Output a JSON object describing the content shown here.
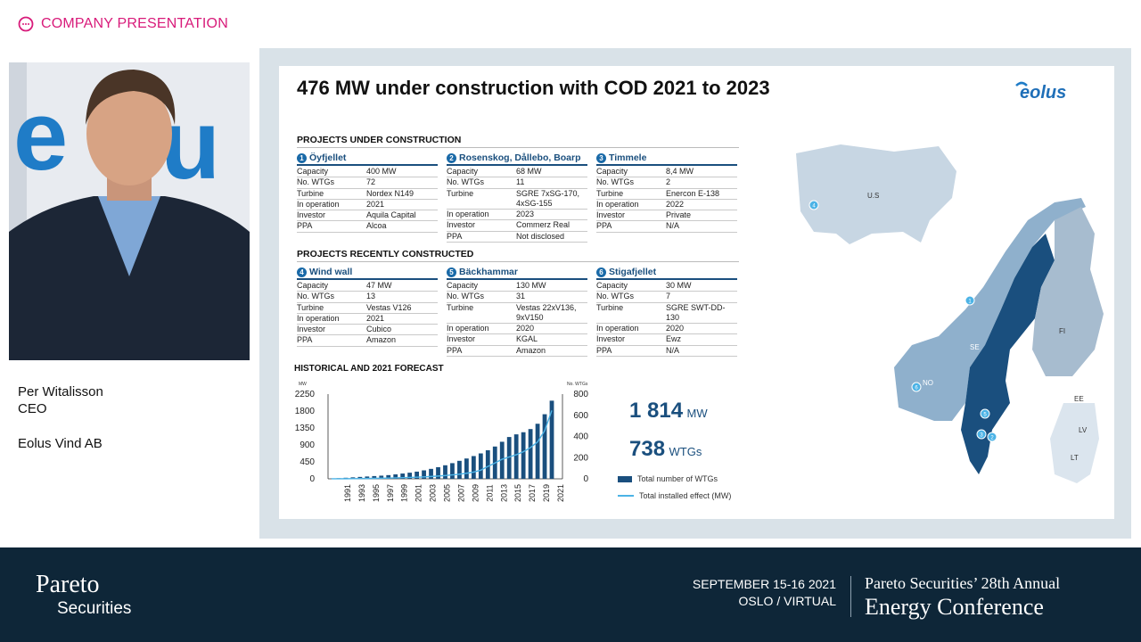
{
  "header": {
    "label": "COMPANY PRESENTATION"
  },
  "presenter": {
    "name": "Per Witalisson",
    "role": "CEO",
    "company": "Eolus Vind AB"
  },
  "slide": {
    "title": "476 MW under construction with COD 2021 to 2023",
    "logo": "eolus",
    "sections": {
      "under": "PROJECTS UNDER CONSTRUCTION",
      "recent": "PROJECTS RECENTLY CONSTRUCTED",
      "forecast": "HISTORICAL AND 2021 FORECAST"
    },
    "projects": [
      {
        "num": "1",
        "name": "Öyfjellet",
        "rows": [
          [
            "Capacity",
            "400 MW"
          ],
          [
            "No. WTGs",
            "72"
          ],
          [
            "Turbine",
            "Nordex N149"
          ],
          [
            "In operation",
            "2021"
          ],
          [
            "Investor",
            "Aquila Capital"
          ],
          [
            "PPA",
            "Alcoa"
          ]
        ]
      },
      {
        "num": "2",
        "name": "Rosenskog, Dållebo, Boarp",
        "rows": [
          [
            "Capacity",
            "68 MW"
          ],
          [
            "No. WTGs",
            "11"
          ],
          [
            "Turbine",
            "SGRE 7xSG-170, 4xSG-155"
          ],
          [
            "In operation",
            "2023"
          ],
          [
            "Investor",
            "Commerz Real"
          ],
          [
            "PPA",
            "Not disclosed"
          ]
        ]
      },
      {
        "num": "3",
        "name": "Timmele",
        "rows": [
          [
            "Capacity",
            "8,4 MW"
          ],
          [
            "No. WTGs",
            "2"
          ],
          [
            "Turbine",
            "Enercon E-138"
          ],
          [
            "In operation",
            "2022"
          ],
          [
            "Investor",
            "Private"
          ],
          [
            "PPA",
            "N/A"
          ]
        ]
      },
      {
        "num": "4",
        "name": "Wind wall",
        "rows": [
          [
            "Capacity",
            "47 MW"
          ],
          [
            "No. WTGs",
            "13"
          ],
          [
            "Turbine",
            "Vestas V126"
          ],
          [
            "In operation",
            "2021"
          ],
          [
            "Investor",
            "Cubico"
          ],
          [
            "PPA",
            "Amazon"
          ]
        ]
      },
      {
        "num": "5",
        "name": "Bäckhammar",
        "rows": [
          [
            "Capacity",
            "130 MW"
          ],
          [
            "No. WTGs",
            "31"
          ],
          [
            "Turbine",
            "Vestas 22xV136, 9xV150"
          ],
          [
            "In operation",
            "2020"
          ],
          [
            "Investor",
            "KGAL"
          ],
          [
            "PPA",
            "Amazon"
          ]
        ]
      },
      {
        "num": "6",
        "name": "Stigafjellet",
        "rows": [
          [
            "Capacity",
            "30 MW"
          ],
          [
            "No. WTGs",
            "7"
          ],
          [
            "Turbine",
            "SGRE SWT-DD-130"
          ],
          [
            "In operation",
            "2020"
          ],
          [
            "Investor",
            "Ewz"
          ],
          [
            "PPA",
            "N/A"
          ]
        ]
      }
    ],
    "totals": {
      "mw": "1 814",
      "mw_unit": "MW",
      "wtgs": "738",
      "wtgs_unit": "WTGs"
    },
    "legend": {
      "bars": "Total number of WTGs",
      "line": "Total installed effect (MW)"
    },
    "map": {
      "labels": [
        "U.S",
        "NO",
        "SE",
        "FI",
        "EE",
        "LV",
        "LT"
      ]
    }
  },
  "chart_data": {
    "type": "bar",
    "title": "HISTORICAL AND 2021 FORECAST",
    "categories": [
      "1990",
      "1991",
      "1992",
      "1993",
      "1994",
      "1995",
      "1996",
      "1997",
      "1998",
      "1999",
      "2000",
      "2001",
      "2002",
      "2003",
      "2004",
      "2005",
      "2006",
      "2007",
      "2008",
      "2009",
      "2010",
      "2011",
      "2012",
      "2013",
      "2014",
      "2015",
      "2016",
      "2017",
      "2018",
      "2019",
      "2020",
      "2021"
    ],
    "tick_labels": [
      "1991",
      "1993",
      "1995",
      "1997",
      "1999",
      "2001",
      "2003",
      "2005",
      "2007",
      "2009",
      "2011",
      "2013",
      "2015",
      "2017",
      "2019",
      "2021"
    ],
    "left_axis": {
      "label": "MW",
      "ticks": [
        "2250",
        "1800",
        "1350",
        "900",
        "450",
        "0"
      ],
      "ylim": [
        0,
        2250
      ]
    },
    "right_axis": {
      "label": "No. WTGs",
      "ticks": [
        "800",
        "600",
        "400",
        "200",
        "0"
      ],
      "ylim": [
        0,
        800
      ]
    },
    "series": [
      {
        "name": "Total number of WTGs",
        "axis": "right",
        "type": "bar",
        "values": [
          2,
          6,
          10,
          14,
          18,
          22,
          26,
          30,
          35,
          42,
          50,
          58,
          68,
          80,
          94,
          110,
          128,
          148,
          170,
          192,
          215,
          240,
          270,
          305,
          350,
          395,
          420,
          440,
          470,
          520,
          610,
          738
        ]
      },
      {
        "name": "Total installed effect (MW)",
        "axis": "left",
        "type": "line",
        "values": [
          1,
          2,
          3,
          5,
          7,
          9,
          12,
          15,
          19,
          24,
          30,
          36,
          44,
          52,
          62,
          74,
          88,
          104,
          124,
          148,
          180,
          230,
          330,
          420,
          520,
          580,
          640,
          720,
          830,
          980,
          1280,
          1814
        ]
      }
    ]
  },
  "footer": {
    "brand1": "Pareto",
    "brand2": "Securities",
    "date": "SEPTEMBER 15-16 2021",
    "place": "OSLO / VIRTUAL",
    "conf1": "Pareto Securities’ 28th Annual",
    "conf2": "Energy Conference"
  }
}
